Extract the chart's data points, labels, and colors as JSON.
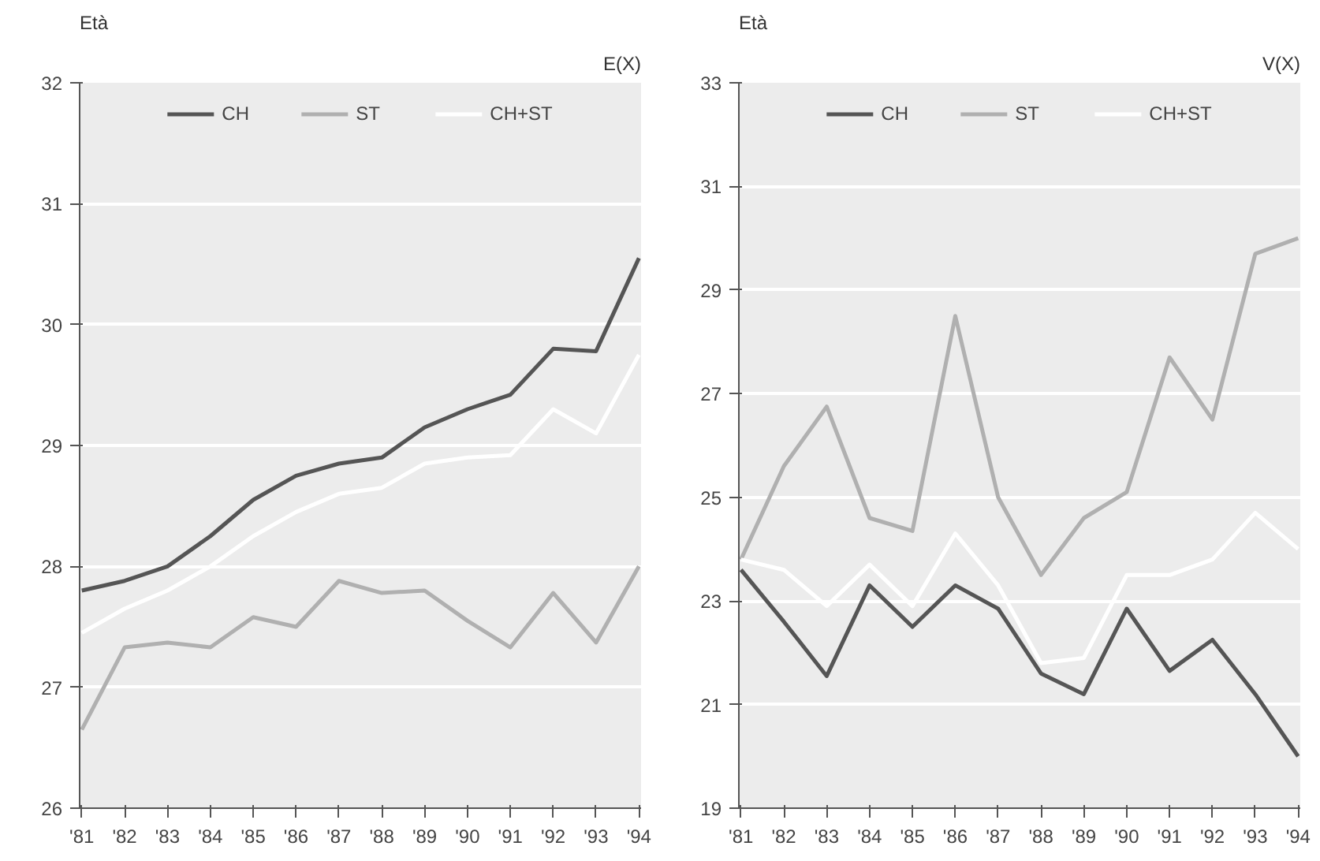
{
  "chart_data": [
    {
      "type": "line",
      "title": "E(X)",
      "ylabel": "Età",
      "categories": [
        "'81",
        "'82",
        "'83",
        "'84",
        "'85",
        "'86",
        "'87",
        "'88",
        "'89",
        "'90",
        "'91",
        "'92",
        "'93",
        "'94"
      ],
      "ylim": [
        26,
        32
      ],
      "yticks": [
        26,
        27,
        28,
        29,
        30,
        31,
        32
      ],
      "grid": "y",
      "legend": "top",
      "marker": "none",
      "series": [
        {
          "name": "CH",
          "color": "#555555",
          "values": [
            27.8,
            27.88,
            28.0,
            28.25,
            28.55,
            28.75,
            28.85,
            28.9,
            29.15,
            29.3,
            29.42,
            29.8,
            29.78,
            30.55
          ]
        },
        {
          "name": "ST",
          "color": "#b0b0b0",
          "values": [
            26.65,
            27.33,
            27.37,
            27.33,
            27.58,
            27.5,
            27.88,
            27.78,
            27.8,
            27.55,
            27.33,
            27.78,
            27.37,
            28.0
          ]
        },
        {
          "name": "CH+ST",
          "color": "#ffffff",
          "values": [
            27.45,
            27.65,
            27.8,
            28.0,
            28.25,
            28.45,
            28.6,
            28.65,
            28.85,
            28.9,
            28.92,
            29.3,
            29.1,
            29.75
          ]
        }
      ]
    },
    {
      "type": "line",
      "title": "V(X)",
      "ylabel": "Età",
      "categories": [
        "'81",
        "'82",
        "'83",
        "'84",
        "'85",
        "'86",
        "'87",
        "'88",
        "'89",
        "'90",
        "'91",
        "'92",
        "'93",
        "'94"
      ],
      "ylim": [
        19,
        33
      ],
      "yticks": [
        19,
        21,
        23,
        25,
        27,
        29,
        31,
        33
      ],
      "grid": "y",
      "legend": "top",
      "marker": "none",
      "series": [
        {
          "name": "CH",
          "color": "#555555",
          "values": [
            23.6,
            22.6,
            21.55,
            23.3,
            22.5,
            23.3,
            22.85,
            21.6,
            21.2,
            22.85,
            21.65,
            22.25,
            21.2,
            20.0
          ]
        },
        {
          "name": "ST",
          "color": "#b0b0b0",
          "values": [
            23.8,
            25.6,
            26.75,
            24.6,
            24.35,
            28.5,
            25.0,
            23.5,
            24.6,
            25.1,
            27.7,
            26.5,
            29.7,
            30.0
          ]
        },
        {
          "name": "CH+ST",
          "color": "#ffffff",
          "values": [
            23.8,
            23.6,
            22.9,
            23.7,
            22.9,
            24.3,
            23.3,
            21.8,
            21.9,
            23.5,
            23.5,
            23.8,
            24.7,
            24.0
          ]
        }
      ]
    }
  ]
}
